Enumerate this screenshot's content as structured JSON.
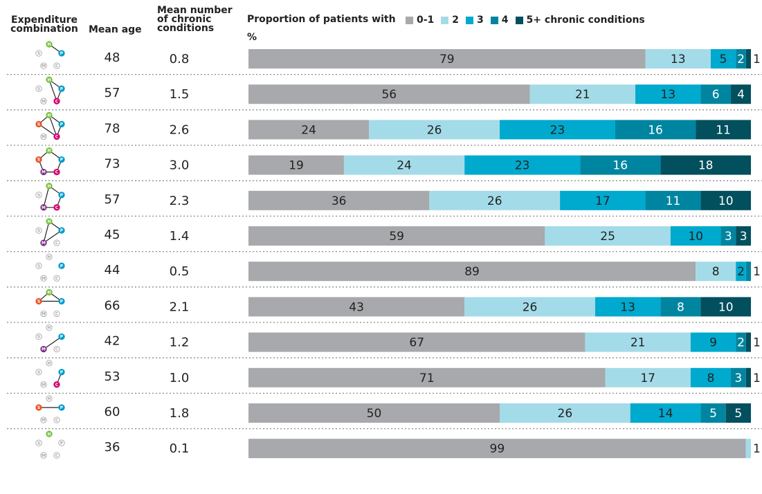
{
  "headers": {
    "combination": "Expenditure combination",
    "age": "Mean age",
    "conditions": "Mean number of chronic conditions",
    "proportion": "Proportion of patients with",
    "unit": "%",
    "legend_suffix": "chronic conditions"
  },
  "node_letters": {
    "H": "H",
    "P": "P",
    "C": "C",
    "M": "M",
    "S": "S"
  },
  "colors": {
    "H": "#7ac143",
    "P": "#009ccc",
    "C": "#d6006e",
    "M": "#7b2d86",
    "S": "#e8542a",
    "inactive_fill": "#ffffff",
    "inactive_stroke": "#a8a8a8"
  },
  "chart_data": {
    "type": "bar",
    "orientation": "horizontal",
    "stacked": true,
    "unit": "%",
    "series": [
      {
        "name": "0-1",
        "color": "#a7a9ac",
        "label_color": "#222222"
      },
      {
        "name": "2",
        "color": "#a4dbe8",
        "label_color": "#222222"
      },
      {
        "name": "3",
        "color": "#00a9ce",
        "label_color": "#222222"
      },
      {
        "name": "4",
        "color": "#0085a1",
        "label_color": "#ffffff"
      },
      {
        "name": "5+",
        "color": "#024f5e",
        "label_color": "#ffffff"
      }
    ],
    "rows": [
      {
        "active": [
          "H",
          "P"
        ],
        "edges": [
          [
            "H",
            "P"
          ]
        ],
        "mean_age": "48",
        "mean_conditions": "0.8",
        "values": [
          79,
          13,
          5,
          2,
          1
        ],
        "labels": [
          "79",
          "13",
          "5",
          "2",
          "1"
        ]
      },
      {
        "active": [
          "H",
          "P",
          "C"
        ],
        "edges": [
          [
            "H",
            "P"
          ],
          [
            "H",
            "C"
          ],
          [
            "P",
            "C"
          ]
        ],
        "mean_age": "57",
        "mean_conditions": "1.5",
        "values": [
          56,
          21,
          13,
          6,
          4
        ],
        "labels": [
          "56",
          "21",
          "13",
          "6",
          "4"
        ]
      },
      {
        "active": [
          "H",
          "P",
          "C",
          "S"
        ],
        "edges": [
          [
            "H",
            "P"
          ],
          [
            "H",
            "S"
          ],
          [
            "P",
            "C"
          ],
          [
            "S",
            "C"
          ],
          [
            "H",
            "C"
          ]
        ],
        "mean_age": "78",
        "mean_conditions": "2.6",
        "values": [
          24,
          26,
          23,
          16,
          11
        ],
        "labels": [
          "24",
          "26",
          "23",
          "16",
          "11"
        ]
      },
      {
        "active": [
          "H",
          "P",
          "C",
          "M",
          "S"
        ],
        "edges": [
          [
            "H",
            "P"
          ],
          [
            "H",
            "S"
          ],
          [
            "S",
            "M"
          ],
          [
            "M",
            "C"
          ],
          [
            "C",
            "P"
          ]
        ],
        "mean_age": "73",
        "mean_conditions": "3.0",
        "values": [
          19,
          24,
          23,
          16,
          18
        ],
        "labels": [
          "19",
          "24",
          "23",
          "16",
          "18"
        ]
      },
      {
        "active": [
          "H",
          "P",
          "C",
          "M"
        ],
        "edges": [
          [
            "H",
            "P"
          ],
          [
            "P",
            "C"
          ],
          [
            "C",
            "M"
          ],
          [
            "M",
            "H"
          ]
        ],
        "mean_age": "57",
        "mean_conditions": "2.3",
        "values": [
          36,
          26,
          17,
          11,
          10
        ],
        "labels": [
          "36",
          "26",
          "17",
          "11",
          "10"
        ]
      },
      {
        "active": [
          "H",
          "P",
          "M"
        ],
        "edges": [
          [
            "H",
            "P"
          ],
          [
            "H",
            "M"
          ],
          [
            "P",
            "M"
          ]
        ],
        "mean_age": "45",
        "mean_conditions": "1.4",
        "values": [
          59,
          25,
          10,
          3,
          3
        ],
        "labels": [
          "59",
          "25",
          "10",
          "3",
          "3"
        ]
      },
      {
        "active": [
          "P"
        ],
        "edges": [],
        "mean_age": "44",
        "mean_conditions": "0.5",
        "values": [
          89,
          8,
          2,
          1,
          0
        ],
        "labels": [
          "89",
          "8",
          "2",
          "1",
          ""
        ]
      },
      {
        "active": [
          "H",
          "P",
          "S"
        ],
        "edges": [
          [
            "H",
            "S"
          ],
          [
            "S",
            "P"
          ],
          [
            "H",
            "P"
          ]
        ],
        "mean_age": "66",
        "mean_conditions": "2.1",
        "values": [
          43,
          26,
          13,
          8,
          10
        ],
        "labels": [
          "43",
          "26",
          "13",
          "8",
          "10"
        ]
      },
      {
        "active": [
          "P",
          "M"
        ],
        "edges": [
          [
            "P",
            "M"
          ]
        ],
        "mean_age": "42",
        "mean_conditions": "1.2",
        "values": [
          67,
          21,
          9,
          2,
          1
        ],
        "labels": [
          "67",
          "21",
          "9",
          "2",
          "1"
        ]
      },
      {
        "active": [
          "P",
          "C"
        ],
        "edges": [
          [
            "P",
            "C"
          ]
        ],
        "mean_age": "53",
        "mean_conditions": "1.0",
        "values": [
          71,
          17,
          8,
          3,
          1
        ],
        "labels": [
          "71",
          "17",
          "8",
          "3",
          "1"
        ]
      },
      {
        "active": [
          "P",
          "S"
        ],
        "edges": [
          [
            "S",
            "P"
          ]
        ],
        "mean_age": "60",
        "mean_conditions": "1.8",
        "values": [
          50,
          26,
          14,
          5,
          5
        ],
        "labels": [
          "50",
          "26",
          "14",
          "5",
          "5"
        ]
      },
      {
        "active": [
          "H"
        ],
        "edges": [],
        "mean_age": "36",
        "mean_conditions": "0.1",
        "values": [
          99,
          1,
          0,
          0,
          0
        ],
        "labels": [
          "99",
          "1",
          "",
          "",
          ""
        ]
      }
    ]
  }
}
